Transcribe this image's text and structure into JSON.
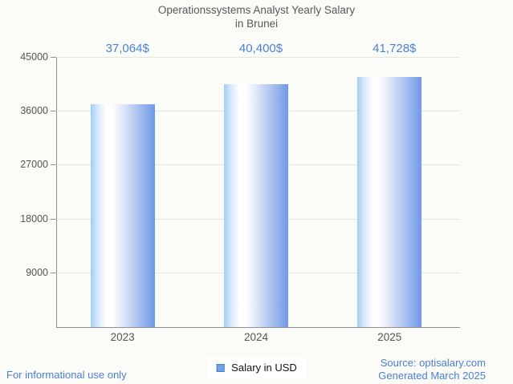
{
  "title": {
    "line1": "Operationssystems Analyst Yearly Salary",
    "line2": "in Brunei"
  },
  "legend": {
    "label": "Salary in USD"
  },
  "footer": {
    "disclaimer": "For informational use only",
    "source": "Source: optisalary.com",
    "generated": "Generated March 2025"
  },
  "colors": {
    "background": "#fbfbf8",
    "title_text": "#58585a",
    "axis_text": "#545454",
    "blue_text": "#4a7fd4",
    "value_label_text": "#4c80d5",
    "gridline": "#e4e4e1",
    "axis_line": "#8f8f8f",
    "bar_gradient_left": "#a0cef8",
    "bar_gradient_highlight": "#ffffff",
    "bar_gradient_right": "#6f99e8",
    "legend_marker_fill": "#6fa3e8",
    "legend_marker_border": "#4e7dbd"
  },
  "chart_data": {
    "type": "bar",
    "title": "Operationssystems Analyst Yearly Salary in Brunei",
    "categories": [
      "2023",
      "2024",
      "2025"
    ],
    "series": [
      {
        "name": "Salary in USD",
        "values": [
          37064,
          40400,
          41728
        ],
        "value_labels": [
          "37,064$",
          "40,400$",
          "41,728$"
        ]
      }
    ],
    "xlabel": "",
    "ylabel": "",
    "ylim": [
      0,
      45000
    ],
    "yticks": [
      9000,
      18000,
      27000,
      36000,
      45000
    ],
    "grid": true,
    "legend_position": "bottom-center"
  }
}
